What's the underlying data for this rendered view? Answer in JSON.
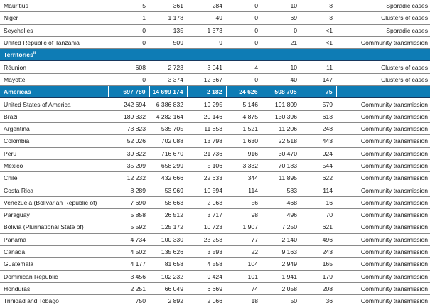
{
  "colors": {
    "accent_blue": "#0E7CB5",
    "blue_row_border": "#17375D",
    "row_border_gray": "#8A8A8A",
    "text": "#1A1A1A",
    "blue_row_text": "#FFFFFF"
  },
  "table": {
    "rows": [
      {
        "type": "country",
        "name": "Mauritius",
        "values": [
          "5",
          "361",
          "284",
          "0",
          "10",
          "8"
        ],
        "classification": "Sporadic cases"
      },
      {
        "type": "country",
        "name": "Niger",
        "values": [
          "1",
          "1 178",
          "49",
          "0",
          "69",
          "3"
        ],
        "classification": "Clusters of cases"
      },
      {
        "type": "country",
        "name": "Seychelles",
        "values": [
          "0",
          "135",
          "1 373",
          "0",
          "0",
          "<1"
        ],
        "classification": "Sporadic cases"
      },
      {
        "type": "country",
        "name": "United Republic of Tanzania",
        "values": [
          "0",
          "509",
          "9",
          "0",
          "21",
          "<1"
        ],
        "classification": "Community transmission"
      },
      {
        "type": "section",
        "name": "Territories",
        "superscript": "ii"
      },
      {
        "type": "country",
        "name": "Réunion",
        "values": [
          "608",
          "2 723",
          "3 041",
          "4",
          "10",
          "11"
        ],
        "classification": "Clusters of cases"
      },
      {
        "type": "country",
        "name": "Mayotte",
        "values": [
          "0",
          "3 374",
          "12 367",
          "0",
          "40",
          "147"
        ],
        "classification": "Clusters of cases"
      },
      {
        "type": "region",
        "name": "Americas",
        "values": [
          "697 780",
          "14 699 174",
          "2 182",
          "24 626",
          "508 705",
          "75"
        ],
        "classification": ""
      },
      {
        "type": "country",
        "name": "United States of America",
        "values": [
          "242 694",
          "6 386 832",
          "19 295",
          "5 146",
          "191 809",
          "579"
        ],
        "classification": "Community transmission"
      },
      {
        "type": "country",
        "name": "Brazil",
        "values": [
          "189 332",
          "4 282 164",
          "20 146",
          "4 875",
          "130 396",
          "613"
        ],
        "classification": "Community transmission"
      },
      {
        "type": "country",
        "name": "Argentina",
        "values": [
          "73 823",
          "535 705",
          "11 853",
          "1 521",
          "11 206",
          "248"
        ],
        "classification": "Community transmission"
      },
      {
        "type": "country",
        "name": "Colombia",
        "values": [
          "52 026",
          "702 088",
          "13 798",
          "1 630",
          "22 518",
          "443"
        ],
        "classification": "Community transmission"
      },
      {
        "type": "country",
        "name": "Peru",
        "values": [
          "39 822",
          "716 670",
          "21 736",
          "916",
          "30 470",
          "924"
        ],
        "classification": "Community transmission"
      },
      {
        "type": "country",
        "name": "Mexico",
        "values": [
          "35 209",
          "658 299",
          "5 106",
          "3 332",
          "70 183",
          "544"
        ],
        "classification": "Community transmission"
      },
      {
        "type": "country",
        "name": "Chile",
        "values": [
          "12 232",
          "432 666",
          "22 633",
          "344",
          "11 895",
          "622"
        ],
        "classification": "Community transmission"
      },
      {
        "type": "country",
        "name": "Costa Rica",
        "values": [
          "8 289",
          "53 969",
          "10 594",
          "114",
          "583",
          "114"
        ],
        "classification": "Community transmission"
      },
      {
        "type": "country",
        "name": "Venezuela (Bolivarian Republic of)",
        "values": [
          "7 690",
          "58 663",
          "2 063",
          "56",
          "468",
          "16"
        ],
        "classification": "Community transmission"
      },
      {
        "type": "country",
        "name": "Paraguay",
        "values": [
          "5 858",
          "26 512",
          "3 717",
          "98",
          "496",
          "70"
        ],
        "classification": "Community transmission"
      },
      {
        "type": "country",
        "name": "Bolivia (Plurinational State of)",
        "values": [
          "5 592",
          "125 172",
          "10 723",
          "1 907",
          "7 250",
          "621"
        ],
        "classification": "Community transmission"
      },
      {
        "type": "country",
        "name": "Panama",
        "values": [
          "4 734",
          "100 330",
          "23 253",
          "77",
          "2 140",
          "496"
        ],
        "classification": "Community transmission"
      },
      {
        "type": "country",
        "name": "Canada",
        "values": [
          "4 502",
          "135 626",
          "3 593",
          "22",
          "9 163",
          "243"
        ],
        "classification": "Community transmission"
      },
      {
        "type": "country",
        "name": "Guatemala",
        "values": [
          "4 177",
          "81 658",
          "4 558",
          "104",
          "2 949",
          "165"
        ],
        "classification": "Community transmission"
      },
      {
        "type": "country",
        "name": "Dominican Republic",
        "values": [
          "3 456",
          "102 232",
          "9 424",
          "101",
          "1 941",
          "179"
        ],
        "classification": "Community transmission"
      },
      {
        "type": "country",
        "name": "Honduras",
        "values": [
          "2 251",
          "66 049",
          "6 669",
          "74",
          "2 058",
          "208"
        ],
        "classification": "Community transmission"
      },
      {
        "type": "country",
        "name": "Trinidad and Tobago",
        "values": [
          "750",
          "2 892",
          "2 066",
          "18",
          "50",
          "36"
        ],
        "classification": "Community transmission"
      }
    ]
  }
}
